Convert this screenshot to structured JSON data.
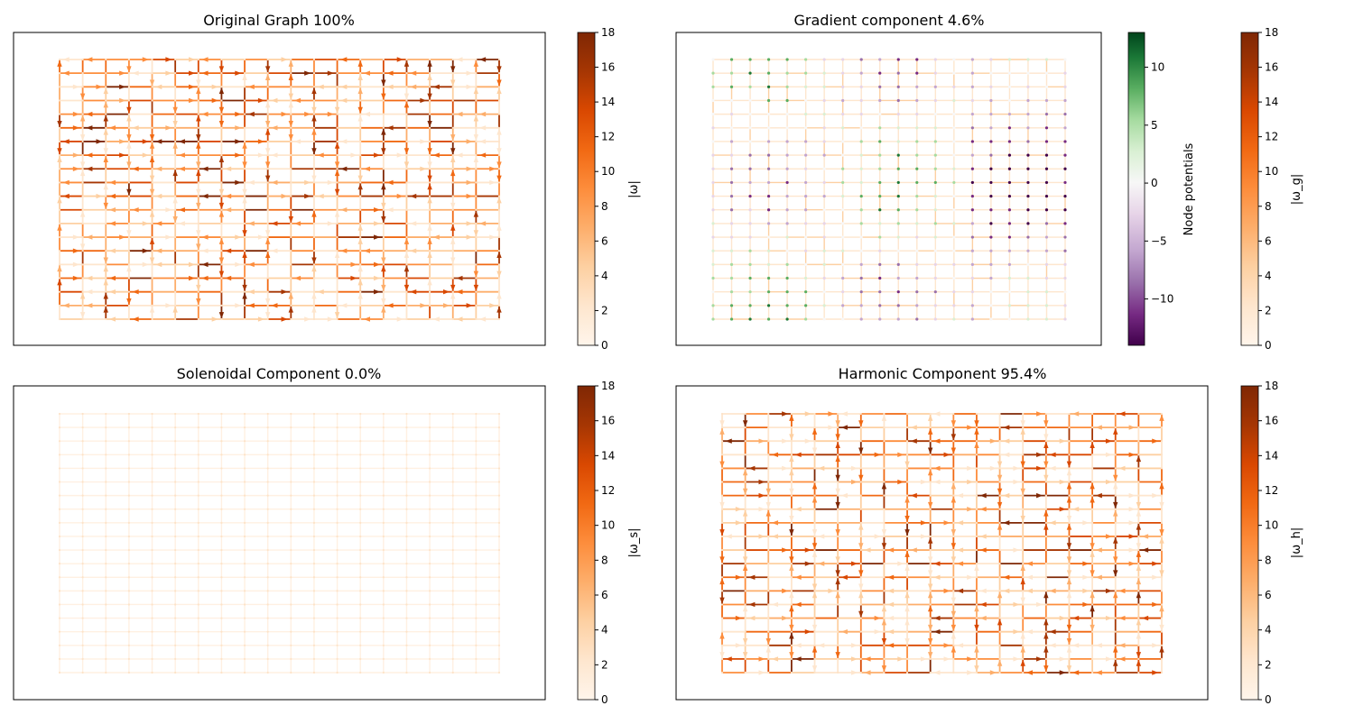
{
  "chart_data": [
    {
      "type": "network-flow",
      "title": "Original Graph 100%",
      "colorbar": {
        "label": "|ω|",
        "range": [
          0,
          18
        ],
        "ticks": [
          "0",
          "2",
          "4",
          "6",
          "8",
          "10",
          "12",
          "14",
          "16",
          "18"
        ],
        "colormap": "Oranges"
      },
      "grid": {
        "columns": 20,
        "rows": 20
      },
      "intensity": "full"
    },
    {
      "type": "network-flow",
      "title": "Gradient component 4.6%",
      "colorbar": {
        "label": "|ω_g|",
        "range": [
          0,
          18
        ],
        "ticks": [
          "0",
          "2",
          "4",
          "6",
          "8",
          "10",
          "12",
          "14",
          "16",
          "18"
        ],
        "colormap": "Oranges"
      },
      "node_colorbar": {
        "label": "Node potentials",
        "range": [
          -14,
          13
        ],
        "ticks": [
          "−10",
          "−5",
          "0",
          "5",
          "10"
        ],
        "tick_values": [
          -10,
          -5,
          0,
          5,
          10
        ],
        "colormap": "PRGn"
      },
      "grid": {
        "columns": 20,
        "rows": 20
      },
      "intensity": "faint"
    },
    {
      "type": "network-flow",
      "title": "Solenoidal Component 0.0%",
      "colorbar": {
        "label": "|ω_s|",
        "range": [
          0,
          18
        ],
        "ticks": [
          "0",
          "2",
          "4",
          "6",
          "8",
          "10",
          "12",
          "14",
          "16",
          "18"
        ],
        "colormap": "Oranges"
      },
      "grid": {
        "columns": 20,
        "rows": 20
      },
      "intensity": "empty"
    },
    {
      "type": "network-flow",
      "title": "Harmonic Component 95.4%",
      "colorbar": {
        "label": "|ω_h|",
        "range": [
          0,
          18
        ],
        "ticks": [
          "0",
          "2",
          "4",
          "6",
          "8",
          "10",
          "12",
          "14",
          "16",
          "18"
        ],
        "colormap": "Oranges"
      },
      "grid": {
        "columns": 20,
        "rows": 20
      },
      "intensity": "full"
    }
  ],
  "colors": {
    "oranges": [
      "#fff5eb",
      "#fee6ce",
      "#fdd0a2",
      "#fdae6b",
      "#fd8d3c",
      "#f16913",
      "#d94801",
      "#a63603",
      "#7f2704"
    ],
    "prgn": [
      "#40004b",
      "#762a83",
      "#9970ab",
      "#c2a5cf",
      "#e7d4e8",
      "#f7f7f7",
      "#d9f0d3",
      "#a6dba0",
      "#5aae61",
      "#1b7837",
      "#00441b"
    ]
  }
}
